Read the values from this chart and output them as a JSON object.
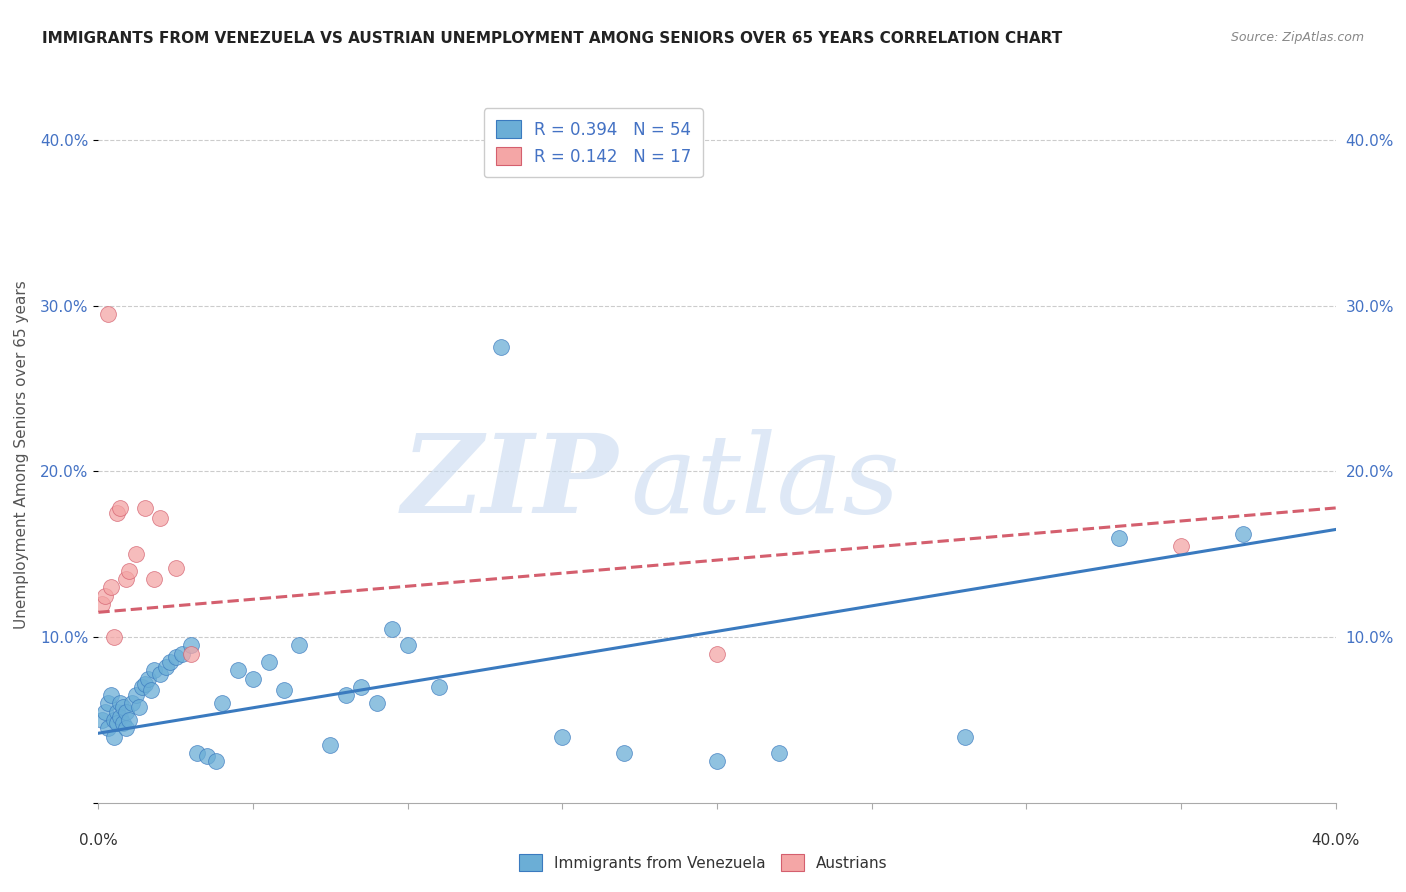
{
  "title": "IMMIGRANTS FROM VENEZUELA VS AUSTRIAN UNEMPLOYMENT AMONG SENIORS OVER 65 YEARS CORRELATION CHART",
  "source": "Source: ZipAtlas.com",
  "ylabel": "Unemployment Among Seniors over 65 years",
  "y_ticks": [
    0.0,
    0.1,
    0.2,
    0.3,
    0.4
  ],
  "x_lim": [
    0.0,
    0.4
  ],
  "y_lim": [
    0.0,
    0.42
  ],
  "blue_color": "#6baed6",
  "pink_color": "#f4a6a6",
  "blue_line_color": "#3a7abf",
  "pink_line_color": "#d45f6e",
  "blue_R": 0.394,
  "blue_N": 54,
  "pink_R": 0.142,
  "pink_N": 17,
  "blue_scatter_x": [
    0.001,
    0.002,
    0.003,
    0.003,
    0.004,
    0.005,
    0.005,
    0.006,
    0.006,
    0.007,
    0.007,
    0.008,
    0.008,
    0.009,
    0.009,
    0.01,
    0.011,
    0.012,
    0.013,
    0.014,
    0.015,
    0.016,
    0.017,
    0.018,
    0.02,
    0.022,
    0.023,
    0.025,
    0.027,
    0.03,
    0.032,
    0.035,
    0.038,
    0.04,
    0.045,
    0.05,
    0.055,
    0.06,
    0.065,
    0.075,
    0.08,
    0.085,
    0.09,
    0.095,
    0.1,
    0.11,
    0.13,
    0.15,
    0.17,
    0.2,
    0.22,
    0.28,
    0.33,
    0.37
  ],
  "blue_scatter_y": [
    0.05,
    0.055,
    0.06,
    0.045,
    0.065,
    0.05,
    0.04,
    0.055,
    0.048,
    0.06,
    0.052,
    0.048,
    0.058,
    0.045,
    0.055,
    0.05,
    0.06,
    0.065,
    0.058,
    0.07,
    0.072,
    0.075,
    0.068,
    0.08,
    0.078,
    0.082,
    0.085,
    0.088,
    0.09,
    0.095,
    0.03,
    0.028,
    0.025,
    0.06,
    0.08,
    0.075,
    0.085,
    0.068,
    0.095,
    0.035,
    0.065,
    0.07,
    0.06,
    0.105,
    0.095,
    0.07,
    0.275,
    0.04,
    0.03,
    0.025,
    0.03,
    0.04,
    0.16,
    0.162
  ],
  "pink_scatter_x": [
    0.001,
    0.002,
    0.003,
    0.004,
    0.005,
    0.006,
    0.007,
    0.009,
    0.01,
    0.012,
    0.015,
    0.018,
    0.02,
    0.025,
    0.03,
    0.2,
    0.35
  ],
  "pink_scatter_y": [
    0.12,
    0.125,
    0.295,
    0.13,
    0.1,
    0.175,
    0.178,
    0.135,
    0.14,
    0.15,
    0.178,
    0.135,
    0.172,
    0.142,
    0.09,
    0.09,
    0.155
  ],
  "blue_trend_x": [
    0.0,
    0.4
  ],
  "blue_trend_y_start": 0.042,
  "blue_trend_y_end": 0.165,
  "pink_trend_x": [
    0.0,
    0.4
  ],
  "pink_trend_y_start": 0.115,
  "pink_trend_y_end": 0.178
}
